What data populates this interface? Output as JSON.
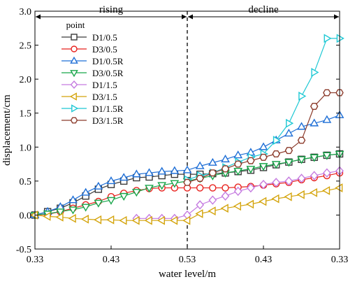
{
  "chart_data": {
    "type": "line",
    "xlabel": "water level/m",
    "ylabel": "displacement/cm",
    "ylim": [
      -0.5,
      3.0
    ],
    "yticks": [
      "-0.5",
      "0.0",
      "0.5",
      "1.0",
      "1.5",
      "2.0",
      "2.5",
      "3.0"
    ],
    "xticks": [
      "0.33",
      "0.43",
      "0.53",
      "0.43",
      "0.33"
    ],
    "x_index_range": [
      0,
      24
    ],
    "x_tick_positions": [
      0,
      6,
      12,
      18,
      24
    ],
    "phases": [
      {
        "label": "rising",
        "from": 0,
        "to": 12
      },
      {
        "label": "decline",
        "from": 12,
        "to": 24
      }
    ],
    "divider_at": 12,
    "legend": {
      "title": "point",
      "placement": "top-left"
    },
    "series": [
      {
        "name": "D1/0.5",
        "color": "#3a3a3a",
        "marker": "square",
        "x": [
          0,
          1,
          2,
          3,
          4,
          5,
          6,
          7,
          8,
          9,
          10,
          11,
          12,
          13,
          14,
          15,
          16,
          17,
          18,
          19,
          20,
          21,
          22,
          23,
          24
        ],
        "y": [
          0,
          0.05,
          0.1,
          0.18,
          0.28,
          0.38,
          0.45,
          0.5,
          0.55,
          0.56,
          0.58,
          0.6,
          0.6,
          0.6,
          0.61,
          0.62,
          0.64,
          0.66,
          0.7,
          0.74,
          0.78,
          0.82,
          0.85,
          0.88,
          0.9
        ]
      },
      {
        "name": "D3/0.5",
        "color": "#e8201c",
        "marker": "circle",
        "x": [
          0,
          1,
          2,
          3,
          4,
          5,
          6,
          7,
          8,
          9,
          10,
          11,
          12,
          13,
          14,
          15,
          16,
          17,
          18,
          19,
          20,
          21,
          22,
          23,
          24
        ],
        "y": [
          0,
          0.01,
          0.05,
          0.1,
          0.15,
          0.2,
          0.27,
          0.32,
          0.36,
          0.39,
          0.4,
          0.4,
          0.4,
          0.4,
          0.4,
          0.4,
          0.41,
          0.42,
          0.44,
          0.46,
          0.48,
          0.52,
          0.55,
          0.58,
          0.62
        ]
      },
      {
        "name": "D1/0.5R",
        "color": "#1f6fd6",
        "marker": "triangle-up",
        "x": [
          0,
          1,
          2,
          3,
          4,
          5,
          6,
          7,
          8,
          9,
          10,
          11,
          12,
          13,
          14,
          15,
          16,
          17,
          18,
          19,
          20,
          21,
          22,
          23,
          24
        ],
        "y": [
          0,
          0.05,
          0.12,
          0.22,
          0.33,
          0.42,
          0.5,
          0.55,
          0.6,
          0.62,
          0.64,
          0.65,
          0.66,
          0.72,
          0.77,
          0.82,
          0.88,
          0.92,
          1.0,
          1.1,
          1.2,
          1.3,
          1.35,
          1.4,
          1.47
        ]
      },
      {
        "name": "D3/0.5R",
        "color": "#18a64a",
        "marker": "triangle-down",
        "x": [
          0,
          1,
          2,
          3,
          4,
          5,
          6,
          7,
          8,
          9,
          10,
          11,
          12,
          13,
          14,
          15,
          16,
          17,
          18,
          19,
          20,
          21,
          22,
          23,
          24
        ],
        "y": [
          0,
          0.02,
          0.05,
          0.08,
          0.12,
          0.18,
          0.22,
          0.28,
          0.34,
          0.4,
          0.44,
          0.47,
          0.5,
          0.54,
          0.58,
          0.62,
          0.65,
          0.68,
          0.72,
          0.75,
          0.78,
          0.82,
          0.85,
          0.88,
          0.9
        ]
      },
      {
        "name": "D1/1.5",
        "color": "#c57be0",
        "marker": "diamond",
        "x": [
          8,
          9,
          10,
          11,
          12,
          13,
          14,
          15,
          16,
          17,
          18,
          19,
          20,
          21,
          22,
          23,
          24
        ],
        "y": [
          -0.05,
          -0.05,
          -0.05,
          -0.05,
          0.0,
          0.15,
          0.22,
          0.28,
          0.35,
          0.4,
          0.45,
          0.48,
          0.5,
          0.54,
          0.58,
          0.62,
          0.65
        ]
      },
      {
        "name": "D3/1.5",
        "color": "#d4a40c",
        "marker": "triangle-left",
        "x": [
          0,
          1,
          2,
          3,
          4,
          5,
          6,
          7,
          8,
          9,
          10,
          11,
          12,
          13,
          14,
          15,
          16,
          17,
          18,
          19,
          20,
          21,
          22,
          23,
          24
        ],
        "y": [
          0,
          -0.02,
          -0.03,
          -0.05,
          -0.06,
          -0.07,
          -0.07,
          -0.08,
          -0.08,
          -0.08,
          -0.08,
          -0.08,
          -0.08,
          0.02,
          0.06,
          0.1,
          0.13,
          0.16,
          0.2,
          0.24,
          0.27,
          0.3,
          0.33,
          0.36,
          0.4
        ]
      },
      {
        "name": "D1/1.5R",
        "color": "#1fc8d4",
        "marker": "triangle-right",
        "x": [
          12,
          13,
          14,
          15,
          16,
          17,
          18,
          19,
          20,
          21,
          22,
          23,
          24
        ],
        "y": [
          0.52,
          0.58,
          0.62,
          0.7,
          0.78,
          0.85,
          0.9,
          1.1,
          1.35,
          1.75,
          2.1,
          2.6,
          2.6
        ]
      },
      {
        "name": "D3/1.5R",
        "color": "#8b3a2a",
        "marker": "hexagon",
        "x": [
          12,
          13,
          14,
          15,
          16,
          17,
          18,
          19,
          20,
          21,
          22,
          23,
          24
        ],
        "y": [
          0.48,
          0.54,
          0.62,
          0.68,
          0.75,
          0.8,
          0.85,
          0.9,
          0.95,
          1.1,
          1.6,
          1.8,
          1.8
        ]
      }
    ]
  }
}
